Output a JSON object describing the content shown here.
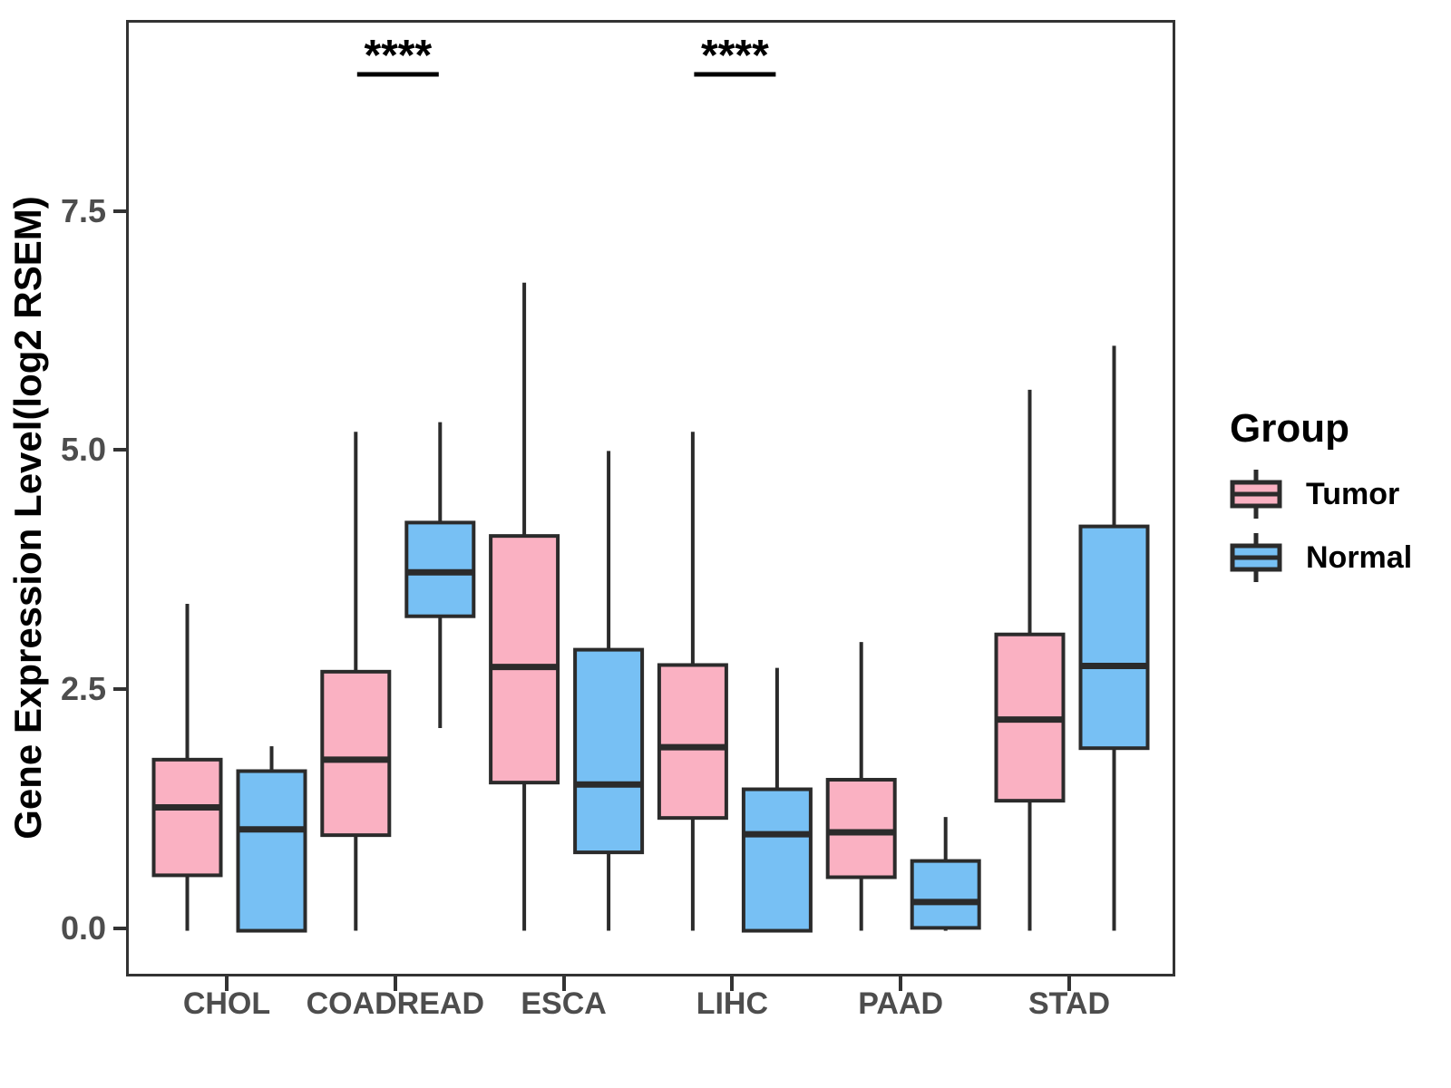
{
  "chart_data": {
    "type": "boxplot",
    "title": "",
    "xlabel": "",
    "ylabel": "Gene Expression Level(log2 RSEM)",
    "categories": [
      "CHOL",
      "COADREAD",
      "ESCA",
      "LIHC",
      "PAAD",
      "STAD"
    ],
    "y_ticks": [
      {
        "label": "0.0",
        "value": 0.0
      },
      {
        "label": "2.5",
        "value": 2.5
      },
      {
        "label": "5.0",
        "value": 5.0
      },
      {
        "label": "7.5",
        "value": 7.5
      }
    ],
    "ylim": [
      -0.45,
      9.5
    ],
    "grid": false,
    "legend": {
      "title": "Group",
      "position": "right",
      "entries": [
        {
          "label": "Tumor",
          "color": "#FAB1C2"
        },
        {
          "label": "Normal",
          "color": "#77C0F4"
        }
      ]
    },
    "series": [
      {
        "name": "Tumor",
        "color": "#FAB1C2",
        "boxes": [
          {
            "category": "CHOL",
            "min": 0.0,
            "q1": 0.58,
            "median": 1.29,
            "q3": 1.79,
            "max": 3.42
          },
          {
            "category": "COADREAD",
            "min": 0.0,
            "q1": 1.0,
            "median": 1.79,
            "q3": 2.71,
            "max": 5.22
          },
          {
            "category": "ESCA",
            "min": 0.0,
            "q1": 1.55,
            "median": 2.76,
            "q3": 4.13,
            "max": 6.78
          },
          {
            "category": "LIHC",
            "min": 0.0,
            "q1": 1.18,
            "median": 1.92,
            "q3": 2.78,
            "max": 5.22
          },
          {
            "category": "PAAD",
            "min": 0.0,
            "q1": 0.56,
            "median": 1.03,
            "q3": 1.58,
            "max": 3.02
          },
          {
            "category": "STAD",
            "min": 0.0,
            "q1": 1.36,
            "median": 2.21,
            "q3": 3.1,
            "max": 5.66
          }
        ]
      },
      {
        "name": "Normal",
        "color": "#77C0F4",
        "boxes": [
          {
            "category": "CHOL",
            "min": 0.0,
            "q1": 0.0,
            "median": 1.06,
            "q3": 1.67,
            "max": 1.93
          },
          {
            "category": "COADREAD",
            "min": 2.12,
            "q1": 3.29,
            "median": 3.75,
            "q3": 4.27,
            "max": 5.32
          },
          {
            "category": "ESCA",
            "min": 0.0,
            "q1": 0.82,
            "median": 1.53,
            "q3": 2.94,
            "max": 5.02
          },
          {
            "category": "LIHC",
            "min": 0.0,
            "q1": 0.0,
            "median": 1.01,
            "q3": 1.48,
            "max": 2.75
          },
          {
            "category": "PAAD",
            "min": 0.0,
            "q1": 0.03,
            "median": 0.3,
            "q3": 0.73,
            "max": 1.19
          },
          {
            "category": "STAD",
            "min": 0.0,
            "q1": 1.91,
            "median": 2.77,
            "q3": 4.23,
            "max": 6.12
          }
        ]
      }
    ],
    "annotations": [
      {
        "category": "COADREAD",
        "label": "****"
      },
      {
        "category": "LIHC",
        "label": "****"
      }
    ],
    "style": {
      "box_stroke": "#2b2b2b",
      "axis_color": "#333333",
      "tick_text_color": "#4d4d4d"
    }
  }
}
